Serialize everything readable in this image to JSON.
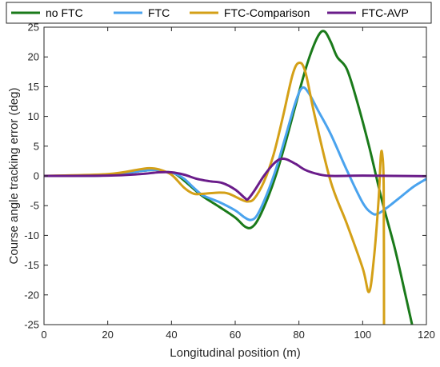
{
  "chart_data": {
    "type": "line",
    "title": "",
    "xlabel": "Longitudinal position (m)",
    "ylabel": "Course angle tracking error (deg)",
    "xlim": [
      0,
      120
    ],
    "ylim": [
      -25,
      25
    ],
    "xticks": [
      0,
      20,
      40,
      60,
      80,
      100,
      120
    ],
    "yticks": [
      -25,
      -20,
      -15,
      -10,
      -5,
      0,
      5,
      10,
      15,
      20,
      25
    ],
    "grid": false,
    "legend_position": "top, horizontal, above plot",
    "series": [
      {
        "name": "no FTC",
        "color": "#1a7a1a",
        "points": [
          [
            0,
            0
          ],
          [
            20,
            0.1
          ],
          [
            30,
            0.8
          ],
          [
            35,
            1.0
          ],
          [
            38,
            0.7
          ],
          [
            41,
            0.4
          ],
          [
            44,
            -0.8
          ],
          [
            47,
            -2.2
          ],
          [
            50,
            -3.5
          ],
          [
            55,
            -5.2
          ],
          [
            60,
            -7.0
          ],
          [
            63,
            -8.5
          ],
          [
            65,
            -8.7
          ],
          [
            67,
            -7.5
          ],
          [
            70,
            -4.0
          ],
          [
            73,
            0.5
          ],
          [
            76,
            6.0
          ],
          [
            80,
            14.0
          ],
          [
            83,
            19.5
          ],
          [
            86,
            23.5
          ],
          [
            88,
            24.3
          ],
          [
            90,
            22.5
          ],
          [
            92,
            20.0
          ],
          [
            95,
            18.0
          ],
          [
            98,
            13.0
          ],
          [
            102,
            5.0
          ],
          [
            106,
            -4.0
          ],
          [
            110,
            -12.0
          ],
          [
            113,
            -19.0
          ],
          [
            115.5,
            -25
          ]
        ]
      },
      {
        "name": "FTC",
        "color": "#4aa3ee",
        "points": [
          [
            0,
            0
          ],
          [
            20,
            0.1
          ],
          [
            30,
            0.8
          ],
          [
            35,
            1.0
          ],
          [
            38,
            0.7
          ],
          [
            41,
            0.4
          ],
          [
            44,
            -0.5
          ],
          [
            47,
            -2.0
          ],
          [
            50,
            -3.3
          ],
          [
            55,
            -4.4
          ],
          [
            60,
            -5.8
          ],
          [
            63,
            -7.0
          ],
          [
            65,
            -7.4
          ],
          [
            67,
            -6.5
          ],
          [
            70,
            -3.0
          ],
          [
            73,
            1.5
          ],
          [
            76,
            7.0
          ],
          [
            79,
            12.5
          ],
          [
            81,
            14.8
          ],
          [
            83,
            14.0
          ],
          [
            86,
            11.0
          ],
          [
            90,
            7.0
          ],
          [
            95,
            1.0
          ],
          [
            100,
            -4.5
          ],
          [
            103,
            -6.3
          ],
          [
            105,
            -6.3
          ],
          [
            108,
            -5.2
          ],
          [
            112,
            -3.5
          ],
          [
            116,
            -1.8
          ],
          [
            120,
            -0.5
          ]
        ]
      },
      {
        "name": "FTC-Comparison",
        "color": "#d4a017",
        "points": [
          [
            0,
            0
          ],
          [
            20,
            0.3
          ],
          [
            30,
            1.1
          ],
          [
            33,
            1.3
          ],
          [
            36,
            1.1
          ],
          [
            40,
            0.2
          ],
          [
            44,
            -2.0
          ],
          [
            47,
            -3.0
          ],
          [
            50,
            -3.0
          ],
          [
            55,
            -2.8
          ],
          [
            58,
            -3.0
          ],
          [
            62,
            -4.0
          ],
          [
            64,
            -4.3
          ],
          [
            66,
            -3.8
          ],
          [
            69,
            -1.0
          ],
          [
            72,
            3.5
          ],
          [
            75,
            10.0
          ],
          [
            78,
            17.0
          ],
          [
            80,
            19.0
          ],
          [
            82,
            17.5
          ],
          [
            85,
            10.0
          ],
          [
            90,
            -1.0
          ],
          [
            95,
            -8.0
          ],
          [
            100,
            -15.5
          ],
          [
            102,
            -19.5
          ],
          [
            103.5,
            -14.0
          ],
          [
            105,
            -4.0
          ],
          [
            105.7,
            3.4
          ],
          [
            106.2,
            3.4
          ],
          [
            106.6,
            -2.0
          ],
          [
            106.7,
            -25
          ]
        ]
      },
      {
        "name": "FTC-AVP",
        "color": "#6a1c8a",
        "points": [
          [
            0,
            0
          ],
          [
            20,
            0.05
          ],
          [
            30,
            0.3
          ],
          [
            36,
            0.6
          ],
          [
            40,
            0.6
          ],
          [
            44,
            0.2
          ],
          [
            48,
            -0.5
          ],
          [
            52,
            -0.9
          ],
          [
            56,
            -1.2
          ],
          [
            60,
            -2.3
          ],
          [
            63,
            -3.7
          ],
          [
            64,
            -3.9
          ],
          [
            66,
            -2.5
          ],
          [
            69,
            0.0
          ],
          [
            72,
            2.0
          ],
          [
            74,
            2.8
          ],
          [
            76,
            2.8
          ],
          [
            79,
            2.0
          ],
          [
            82,
            1.0
          ],
          [
            86,
            0.3
          ],
          [
            90,
            0.0
          ],
          [
            100,
            0.05
          ],
          [
            110,
            0.0
          ],
          [
            120,
            -0.05
          ]
        ]
      }
    ]
  }
}
